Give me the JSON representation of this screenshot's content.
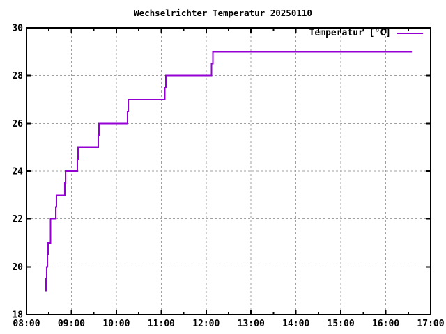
{
  "chart_data": {
    "type": "line",
    "line_style": "step-after",
    "title": "Wechselrichter Temperatur 20250110",
    "xlabel": "",
    "ylabel": "",
    "legend": {
      "label": "Temperatur [°C]",
      "position": "top-right-inside"
    },
    "colors": {
      "line": "#9400d3",
      "grid": "#a0a0a0",
      "frame": "#000000",
      "background": "#ffffff",
      "text": "#000000"
    },
    "grid": true,
    "x_axis": {
      "type": "time",
      "min": "08:00",
      "max": "17:00",
      "major_ticks": [
        "08:00",
        "09:00",
        "10:00",
        "11:00",
        "12:00",
        "13:00",
        "14:00",
        "15:00",
        "16:00",
        "17:00"
      ],
      "minor_tick_interval_minutes": 30,
      "grid_on_major": true
    },
    "y_axis": {
      "min": 18,
      "max": 30,
      "major_ticks": [
        18,
        20,
        22,
        24,
        26,
        28,
        30
      ],
      "grid_on_major": true
    },
    "series": [
      {
        "name": "Temperatur [°C]",
        "color": "#9400d3",
        "points": [
          [
            "08:25",
            19.0
          ],
          [
            "08:26",
            19.5
          ],
          [
            "08:27",
            20.0
          ],
          [
            "08:28",
            20.5
          ],
          [
            "08:29",
            21.0
          ],
          [
            "08:32",
            22.0
          ],
          [
            "08:39",
            22.5
          ],
          [
            "08:40",
            23.0
          ],
          [
            "08:51",
            23.5
          ],
          [
            "08:52",
            24.0
          ],
          [
            "09:08",
            24.5
          ],
          [
            "09:09",
            25.0
          ],
          [
            "09:36",
            25.5
          ],
          [
            "09:37",
            26.0
          ],
          [
            "10:15",
            26.5
          ],
          [
            "10:16",
            27.0
          ],
          [
            "11:05",
            27.5
          ],
          [
            "11:06",
            28.0
          ],
          [
            "12:07",
            28.5
          ],
          [
            "12:09",
            29.0
          ],
          [
            "16:35",
            29.0
          ]
        ]
      }
    ]
  }
}
